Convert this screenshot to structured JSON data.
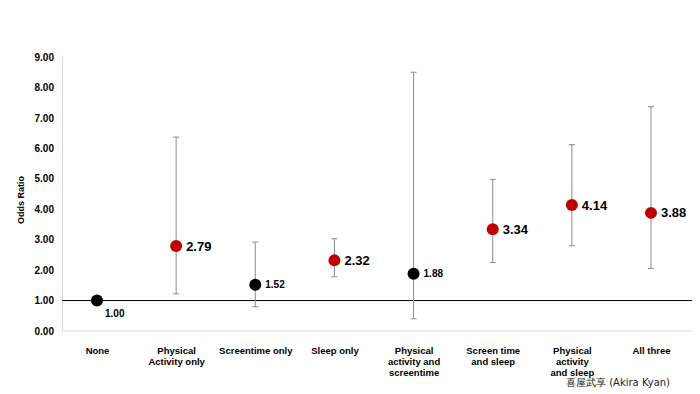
{
  "chart_data": {
    "type": "dot",
    "y_label": "Odds Ratio",
    "categories": [
      "None",
      "Physical\nActivity only",
      "Screentime only",
      "Sleep only",
      "Physical\nactivity and\nscreentime",
      "Screen time\nand sleep",
      "Physical\nactivity\nand sleep",
      "All three"
    ],
    "values": [
      1.0,
      2.79,
      1.52,
      2.32,
      1.88,
      3.34,
      4.14,
      3.88
    ],
    "value_labels": [
      "1.00",
      "2.79",
      "1.52",
      "2.32",
      "1.88",
      "3.34",
      "4.14",
      "3.88"
    ],
    "ci_lower": [
      null,
      1.22,
      0.8,
      1.78,
      0.4,
      2.25,
      2.8,
      2.05
    ],
    "ci_upper": [
      null,
      6.37,
      2.92,
      3.03,
      8.5,
      4.98,
      6.12,
      7.37
    ],
    "colors": [
      "#000000",
      "#c00000",
      "#000000",
      "#c00000",
      "#000000",
      "#c00000",
      "#c00000",
      "#c00000"
    ],
    "ylim": [
      0,
      9
    ],
    "yticks": [
      {
        "value": 0,
        "label": "0.00"
      },
      {
        "value": 1,
        "label": "1.00"
      },
      {
        "value": 2,
        "label": "2.00"
      },
      {
        "value": 3,
        "label": "3.00"
      },
      {
        "value": 4,
        "label": "4.00"
      },
      {
        "value": 5,
        "label": "5.00"
      },
      {
        "value": 6,
        "label": "6.00"
      },
      {
        "value": 7,
        "label": "7.00"
      },
      {
        "value": 8,
        "label": "8.00"
      },
      {
        "value": 9,
        "label": "9.00"
      }
    ],
    "reference_line": 1,
    "data_labels": true,
    "grid": false,
    "marker": "circle",
    "annotation": "喜屋武享 (Akira Kyan)"
  }
}
